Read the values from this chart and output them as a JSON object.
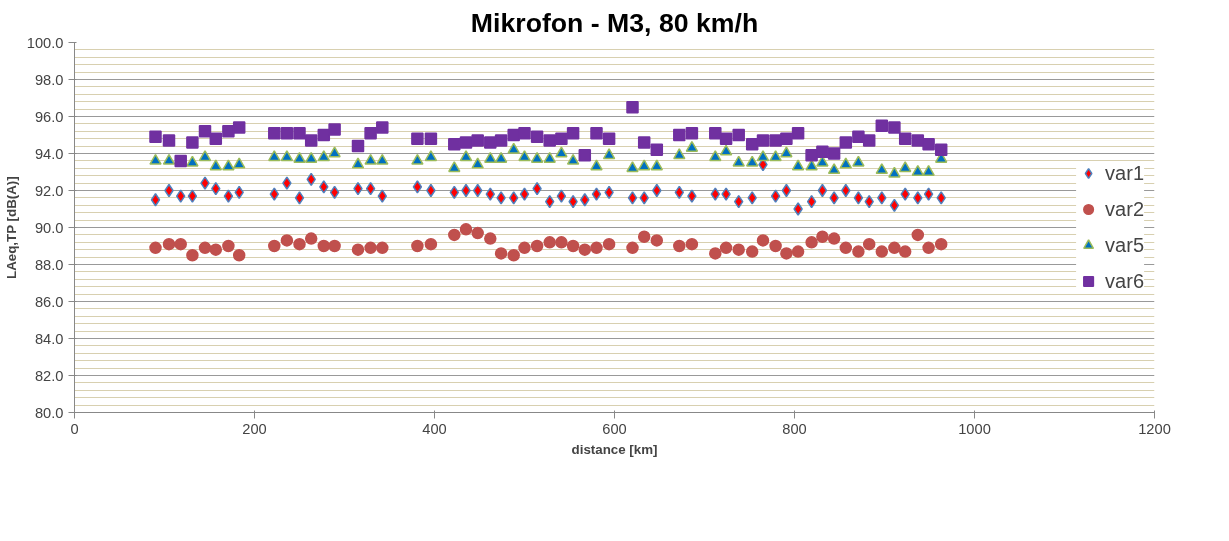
{
  "chart_data": {
    "type": "scatter",
    "title": "Mikrofon - M3, 80 km/h",
    "xlabel": "distance [km]",
    "ylabel": "LAeq,TP [dB(A)]",
    "x": [
      90,
      105,
      118,
      131,
      145,
      157,
      171,
      183,
      222,
      236,
      250,
      263,
      277,
      289,
      315,
      329,
      342,
      381,
      396,
      422,
      435,
      448,
      462,
      474,
      488,
      500,
      514,
      528,
      541,
      554,
      567,
      580,
      594,
      620,
      633,
      647,
      672,
      686,
      712,
      724,
      738,
      753,
      765,
      779,
      791,
      804,
      819,
      831,
      844,
      857,
      871,
      883,
      897,
      911,
      923,
      937,
      949,
      963
    ],
    "series": [
      {
        "name": "var1",
        "color": "#ff0000",
        "marker": "diamond",
        "values": [
          91.5,
          92.0,
          91.7,
          91.7,
          92.4,
          92.1,
          91.7,
          91.9,
          91.8,
          92.4,
          91.6,
          92.6,
          92.2,
          91.9,
          92.1,
          92.1,
          91.7,
          92.2,
          92.0,
          91.9,
          92.0,
          92.0,
          91.8,
          91.6,
          91.6,
          91.8,
          92.1,
          91.4,
          91.7,
          91.4,
          91.5,
          91.8,
          91.9,
          91.6,
          91.6,
          92.0,
          91.9,
          91.7,
          91.8,
          91.8,
          91.4,
          91.6,
          93.4,
          91.7,
          92.0,
          91.0,
          91.4,
          92.0,
          91.6,
          92.0,
          91.6,
          91.4,
          91.6,
          91.2,
          91.8,
          91.6,
          91.8,
          91.6
        ]
      },
      {
        "name": "var2",
        "color": "#c0504d",
        "marker": "circle",
        "values": [
          88.9,
          89.1,
          89.1,
          88.5,
          88.9,
          88.8,
          89.0,
          88.5,
          89.0,
          89.3,
          89.1,
          89.4,
          89.0,
          89.0,
          88.8,
          88.9,
          88.9,
          89.0,
          89.1,
          89.6,
          89.9,
          89.7,
          89.4,
          88.6,
          88.5,
          88.9,
          89.0,
          89.2,
          89.2,
          89.0,
          88.8,
          88.9,
          89.1,
          88.9,
          89.5,
          89.3,
          89.0,
          89.1,
          88.6,
          88.9,
          88.8,
          88.7,
          89.3,
          89.0,
          88.6,
          88.7,
          89.2,
          89.5,
          89.4,
          88.9,
          88.7,
          89.1,
          88.7,
          88.9,
          88.7,
          89.6,
          88.9,
          89.1
        ]
      },
      {
        "name": "var5",
        "color": "#0070c0",
        "marker": "triangle",
        "values": [
          93.6,
          93.6,
          null,
          93.5,
          93.8,
          93.3,
          93.3,
          93.4,
          93.8,
          93.8,
          93.7,
          93.7,
          93.8,
          94.0,
          93.4,
          93.6,
          93.6,
          93.6,
          93.8,
          93.2,
          93.8,
          93.4,
          93.7,
          93.7,
          94.2,
          93.8,
          93.7,
          93.7,
          94.0,
          93.6,
          null,
          93.3,
          93.9,
          93.2,
          93.3,
          93.3,
          93.9,
          94.3,
          93.8,
          94.1,
          93.5,
          93.5,
          93.8,
          93.8,
          94.0,
          93.3,
          93.3,
          93.5,
          93.1,
          93.4,
          93.5,
          null,
          93.1,
          92.9,
          93.2,
          93.0,
          93.0,
          93.7
        ]
      },
      {
        "name": "var6",
        "color": "#7030a0",
        "marker": "square",
        "values": [
          94.9,
          94.7,
          93.6,
          94.6,
          95.2,
          94.8,
          95.2,
          95.4,
          95.1,
          95.1,
          95.1,
          94.7,
          95.0,
          95.3,
          94.4,
          95.1,
          95.4,
          94.8,
          94.8,
          94.5,
          94.6,
          94.7,
          94.6,
          94.7,
          95.0,
          95.1,
          94.9,
          94.7,
          94.8,
          95.1,
          93.9,
          95.1,
          94.8,
          96.5,
          94.6,
          94.2,
          95.0,
          95.1,
          95.1,
          94.8,
          95.0,
          94.5,
          94.7,
          94.7,
          94.8,
          95.1,
          93.9,
          94.1,
          94.0,
          94.6,
          94.9,
          94.7,
          95.5,
          95.4,
          94.8,
          94.7,
          94.5,
          94.2
        ]
      }
    ],
    "xlim": [
      0,
      1200
    ],
    "xticks": [
      0,
      200,
      400,
      600,
      800,
      1000,
      1200
    ],
    "ylim": [
      80,
      100
    ],
    "yticks": [
      {
        "value": 80,
        "label": "80.0"
      },
      {
        "value": 82,
        "label": "82.0"
      },
      {
        "value": 84,
        "label": "84.0"
      },
      {
        "value": 86,
        "label": "86.0"
      },
      {
        "value": 88,
        "label": "88.0"
      },
      {
        "value": 90,
        "label": "90.0"
      },
      {
        "value": 92,
        "label": "92.0"
      },
      {
        "value": 94,
        "label": "94.0"
      },
      {
        "value": 96,
        "label": "96.0"
      },
      {
        "value": 98,
        "label": "98.0"
      },
      {
        "value": 100,
        "label": "100.0"
      }
    ],
    "grid": "y",
    "legend": "right"
  }
}
